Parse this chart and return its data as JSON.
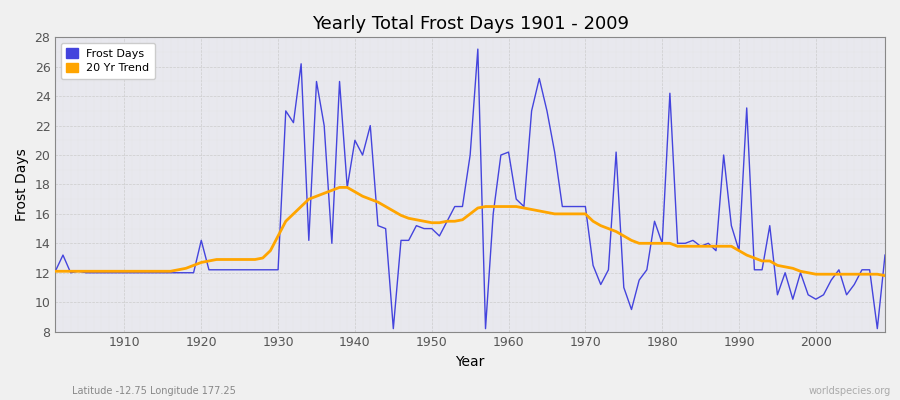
{
  "title": "Yearly Total Frost Days 1901 - 2009",
  "xlabel": "Year",
  "ylabel": "Frost Days",
  "subtitle": "Latitude -12.75 Longitude 177.25",
  "watermark": "worldspecies.org",
  "background_color": "#f0f0f0",
  "plot_bg_color": "#e8e8ee",
  "line_color": "#4444dd",
  "trend_color": "#ffa500",
  "ylim": [
    8,
    28
  ],
  "xlim": [
    1901,
    2009
  ],
  "years": [
    1901,
    1902,
    1903,
    1904,
    1905,
    1906,
    1907,
    1908,
    1909,
    1910,
    1911,
    1912,
    1913,
    1914,
    1915,
    1916,
    1917,
    1918,
    1919,
    1920,
    1921,
    1922,
    1923,
    1924,
    1925,
    1926,
    1927,
    1928,
    1929,
    1930,
    1931,
    1932,
    1933,
    1934,
    1935,
    1936,
    1937,
    1938,
    1939,
    1940,
    1941,
    1942,
    1943,
    1944,
    1945,
    1946,
    1947,
    1948,
    1949,
    1950,
    1951,
    1952,
    1953,
    1954,
    1955,
    1956,
    1957,
    1958,
    1959,
    1960,
    1961,
    1962,
    1963,
    1964,
    1965,
    1966,
    1967,
    1968,
    1969,
    1970,
    1971,
    1972,
    1973,
    1974,
    1975,
    1976,
    1977,
    1978,
    1979,
    1980,
    1981,
    1982,
    1983,
    1984,
    1985,
    1986,
    1987,
    1988,
    1989,
    1990,
    1991,
    1992,
    1993,
    1994,
    1995,
    1996,
    1997,
    1998,
    1999,
    2000,
    2001,
    2002,
    2003,
    2004,
    2005,
    2006,
    2007,
    2008,
    2009
  ],
  "frost_days": [
    12.1,
    13.2,
    12.0,
    12.1,
    12.0,
    12.0,
    12.0,
    12.0,
    12.0,
    12.0,
    12.0,
    12.0,
    12.0,
    12.0,
    12.0,
    12.0,
    12.0,
    12.0,
    12.0,
    14.2,
    12.2,
    12.2,
    12.2,
    12.2,
    12.2,
    12.2,
    12.2,
    12.2,
    12.2,
    12.2,
    23.0,
    22.2,
    26.2,
    14.2,
    25.0,
    22.0,
    14.0,
    25.0,
    17.8,
    21.0,
    20.0,
    22.0,
    15.2,
    15.0,
    8.2,
    14.2,
    14.2,
    15.2,
    15.0,
    15.0,
    14.5,
    15.5,
    16.5,
    16.5,
    20.0,
    27.2,
    8.2,
    16.0,
    20.0,
    20.2,
    17.0,
    16.5,
    23.0,
    25.2,
    23.0,
    20.2,
    16.5,
    16.5,
    16.5,
    16.5,
    12.5,
    11.2,
    12.2,
    20.2,
    11.0,
    9.5,
    11.5,
    12.2,
    15.5,
    14.0,
    24.2,
    14.0,
    14.0,
    14.2,
    13.8,
    14.0,
    13.5,
    20.0,
    15.2,
    13.5,
    23.2,
    12.2,
    12.2,
    15.2,
    10.5,
    12.0,
    10.2,
    12.0,
    10.5,
    10.2,
    10.5,
    11.5,
    12.2,
    10.5,
    11.2,
    12.2,
    12.2,
    8.2,
    13.2
  ],
  "trend_vals": [
    12.1,
    12.1,
    12.1,
    12.1,
    12.1,
    12.1,
    12.1,
    12.1,
    12.1,
    12.1,
    12.1,
    12.1,
    12.1,
    12.1,
    12.1,
    12.1,
    12.2,
    12.3,
    12.5,
    12.7,
    12.8,
    12.9,
    12.9,
    12.9,
    12.9,
    12.9,
    12.9,
    13.0,
    13.5,
    14.5,
    15.5,
    16.0,
    16.5,
    17.0,
    17.2,
    17.4,
    17.6,
    17.8,
    17.8,
    17.5,
    17.2,
    17.0,
    16.8,
    16.5,
    16.2,
    15.9,
    15.7,
    15.6,
    15.5,
    15.4,
    15.4,
    15.5,
    15.5,
    15.6,
    16.0,
    16.4,
    16.5,
    16.5,
    16.5,
    16.5,
    16.5,
    16.4,
    16.3,
    16.2,
    16.1,
    16.0,
    16.0,
    16.0,
    16.0,
    16.0,
    15.5,
    15.2,
    15.0,
    14.8,
    14.5,
    14.2,
    14.0,
    14.0,
    14.0,
    14.0,
    14.0,
    13.8,
    13.8,
    13.8,
    13.8,
    13.8,
    13.8,
    13.8,
    13.8,
    13.5,
    13.2,
    13.0,
    12.8,
    12.8,
    12.5,
    12.4,
    12.3,
    12.1,
    12.0,
    11.9,
    11.9,
    11.9,
    11.9,
    11.9,
    11.9,
    11.9,
    11.9,
    11.9,
    11.8
  ]
}
